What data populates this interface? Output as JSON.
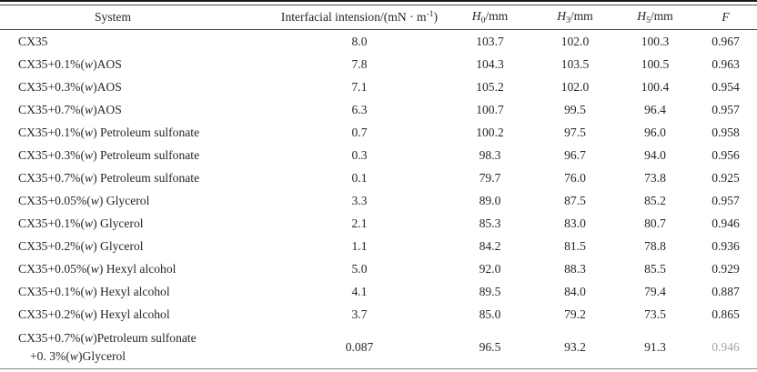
{
  "colors": {
    "text": "#262626",
    "rule_dark": "#1b1b1b",
    "rule_mid": "#4a4a4a",
    "rule_light": "#8a8a8a"
  },
  "table": {
    "headers": [
      {
        "id": "system",
        "kind": "plain",
        "text": "System"
      },
      {
        "id": "tension",
        "kind": "sup_unit",
        "pre": "Interfacial intension/(mN · m",
        "sup": "-1",
        "post": ")"
      },
      {
        "id": "h0",
        "kind": "var_sub",
        "base": "H",
        "sub": "0",
        "post": "/mm"
      },
      {
        "id": "h3",
        "kind": "var_sub",
        "base": "H",
        "sub": "3",
        "post": "/mm"
      },
      {
        "id": "h5",
        "kind": "var_sub",
        "base": "H",
        "sub": "5",
        "post": "/mm"
      },
      {
        "id": "f",
        "kind": "var",
        "text": "F"
      }
    ],
    "rows": [
      {
        "system": "CX35",
        "tension": "8.0",
        "h0": "103.7",
        "h3": "102.0",
        "h5": "100.3",
        "f": "0.967"
      },
      {
        "system": "CX35+0.1%(w)AOS",
        "tension": "7.8",
        "h0": "104.3",
        "h3": "103.5",
        "h5": "100.5",
        "f": "0.963"
      },
      {
        "system": "CX35+0.3%(w)AOS",
        "tension": "7.1",
        "h0": "105.2",
        "h3": "102.0",
        "h5": "100.4",
        "f": "0.954"
      },
      {
        "system": "CX35+0.7%(w)AOS",
        "tension": "6.3",
        "h0": "100.7",
        "h3": "99.5",
        "h5": "96.4",
        "f": "0.957"
      },
      {
        "system": "CX35+0.1%(w) Petroleum sulfonate",
        "tension": "0.7",
        "h0": "100.2",
        "h3": "97.5",
        "h5": "96.0",
        "f": "0.958"
      },
      {
        "system": "CX35+0.3%(w) Petroleum sulfonate",
        "tension": "0.3",
        "h0": "98.3",
        "h3": "96.7",
        "h5": "94.0",
        "f": "0.956"
      },
      {
        "system": "CX35+0.7%(w) Petroleum sulfonate",
        "tension": "0.1",
        "h0": "79.7",
        "h3": "76.0",
        "h5": "73.8",
        "f": "0.925"
      },
      {
        "system": "CX35+0.05%(w) Glycerol",
        "tension": "3.3",
        "h0": "89.0",
        "h3": "87.5",
        "h5": "85.2",
        "f": "0.957"
      },
      {
        "system": "CX35+0.1%(w) Glycerol",
        "tension": "2.1",
        "h0": "85.3",
        "h3": "83.0",
        "h5": "80.7",
        "f": "0.946"
      },
      {
        "system": "CX35+0.2%(w) Glycerol",
        "tension": "1.1",
        "h0": "84.2",
        "h3": "81.5",
        "h5": "78.8",
        "f": "0.936"
      },
      {
        "system": "CX35+0.05%(w) Hexyl alcohol",
        "tension": "5.0",
        "h0": "92.0",
        "h3": "88.3",
        "h5": "85.5",
        "f": "0.929"
      },
      {
        "system": "CX35+0.1%(w) Hexyl alcohol",
        "tension": "4.1",
        "h0": "89.5",
        "h3": "84.0",
        "h5": "79.4",
        "f": "0.887"
      },
      {
        "system": "CX35+0.2%(w) Hexyl alcohol",
        "tension": "3.7",
        "h0": "85.0",
        "h3": "79.2",
        "h5": "73.5",
        "f": "0.865"
      },
      {
        "system": "CX35+0.7%(w)Petroleum sulfonate",
        "system_line2": "+0. 3%(w)Glycerol",
        "tension": "0.087",
        "h0": "96.5",
        "h3": "93.2",
        "h5": "91.3",
        "f": "0.946",
        "f_faded": true
      }
    ]
  }
}
